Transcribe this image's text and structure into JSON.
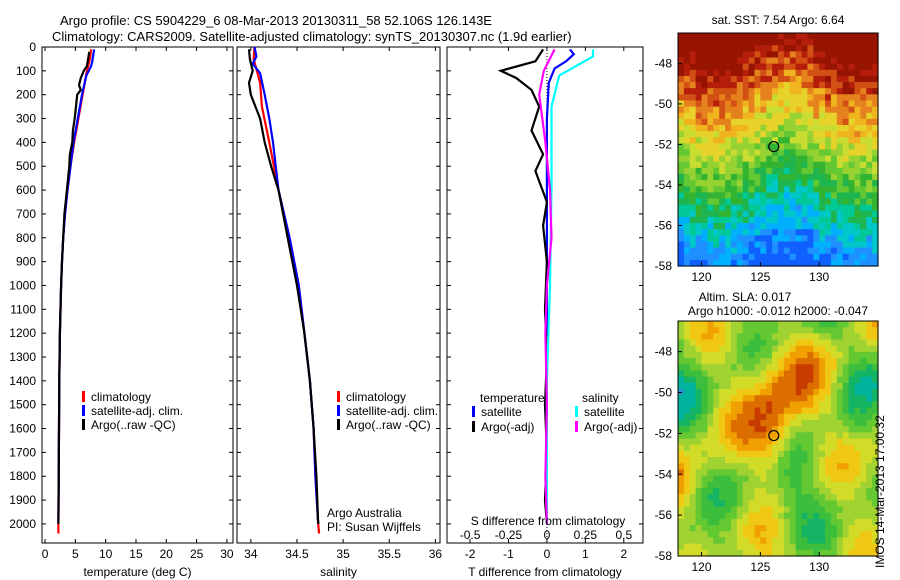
{
  "header": {
    "title_line1": "Argo profile: CS 5904229_6 08-Mar-2013 20130311_58 52.106S 126.143E",
    "title_line2": "Climatology: CARS2009. Satellite-adjusted climatology: synTS_20130307.nc (1.9d earlier)"
  },
  "colors": {
    "climatology": "#ff0000",
    "satellite": "#0000ff",
    "argo": "#000000",
    "satellite_salinity": "#00ffff",
    "argo_salinity_diff": "#ff00ff"
  },
  "chart_data": [
    {
      "type": "line",
      "panel": "temperature",
      "xlabel": "temperature (deg C)",
      "ylabel": "",
      "xlim": [
        -0.5,
        31
      ],
      "ylim": [
        2080,
        0
      ],
      "xticks": [
        "0",
        "5",
        "10",
        "15",
        "20",
        "25",
        "30"
      ],
      "xtick_values": [
        0,
        5,
        10,
        15,
        20,
        25,
        30
      ],
      "yticks": [
        0,
        100,
        200,
        300,
        400,
        500,
        600,
        700,
        800,
        900,
        1000,
        1100,
        1200,
        1300,
        1400,
        1500,
        1600,
        1700,
        1800,
        1900,
        2000
      ],
      "legend": [
        "climatology",
        "satellite-adj. clim.",
        "Argo(..raw -QC)"
      ],
      "series": [
        {
          "name": "climatology",
          "color": "#ff0000",
          "points": [
            [
              7.6,
              10
            ],
            [
              7.4,
              50
            ],
            [
              6.9,
              100
            ],
            [
              6.2,
              200
            ],
            [
              5.5,
              300
            ],
            [
              4.8,
              400
            ],
            [
              4.2,
              500
            ],
            [
              3.7,
              600
            ],
            [
              3.3,
              700
            ],
            [
              3.0,
              800
            ],
            [
              2.8,
              900
            ],
            [
              2.65,
              1000
            ],
            [
              2.55,
              1100
            ],
            [
              2.45,
              1200
            ],
            [
              2.35,
              1400
            ],
            [
              2.3,
              1600
            ],
            [
              2.25,
              1800
            ],
            [
              2.2,
              2000
            ],
            [
              2.2,
              2040
            ]
          ]
        },
        {
          "name": "satellite-adj. clim.",
          "color": "#0000ff",
          "points": [
            [
              8.1,
              10
            ],
            [
              7.8,
              60
            ],
            [
              7.6,
              80
            ],
            [
              6.8,
              120
            ],
            [
              6.1,
              200
            ],
            [
              5.4,
              300
            ],
            [
              4.7,
              400
            ],
            [
              4.2,
              500
            ],
            [
              3.7,
              600
            ],
            [
              3.3,
              700
            ],
            [
              3.0,
              800
            ],
            [
              2.8,
              900
            ],
            [
              2.65,
              1000
            ],
            [
              2.55,
              1100
            ],
            [
              2.45,
              1200
            ],
            [
              2.35,
              1400
            ],
            [
              2.3,
              1600
            ],
            [
              2.25,
              1800
            ],
            [
              2.2,
              2000
            ]
          ]
        },
        {
          "name": "Argo(..raw -QC)",
          "color": "#000000",
          "points": [
            [
              7.3,
              20
            ],
            [
              7.1,
              50
            ],
            [
              6.9,
              80
            ],
            [
              6.4,
              100
            ],
            [
              5.9,
              130
            ],
            [
              5.6,
              160
            ],
            [
              5.9,
              180
            ],
            [
              5.3,
              200
            ],
            [
              5.1,
              250
            ],
            [
              4.9,
              300
            ],
            [
              4.6,
              350
            ],
            [
              4.5,
              400
            ],
            [
              4.1,
              450
            ],
            [
              4.0,
              500
            ],
            [
              3.6,
              600
            ],
            [
              3.2,
              700
            ],
            [
              3.0,
              800
            ],
            [
              2.8,
              900
            ],
            [
              2.65,
              1000
            ],
            [
              2.55,
              1100
            ],
            [
              2.45,
              1200
            ],
            [
              2.35,
              1400
            ],
            [
              2.3,
              1600
            ],
            [
              2.25,
              1800
            ],
            [
              2.2,
              2000
            ]
          ]
        }
      ]
    },
    {
      "type": "line",
      "panel": "salinity",
      "xlabel": "salinity",
      "ylabel": "",
      "xlim": [
        33.85,
        36.05
      ],
      "ylim": [
        2080,
        0
      ],
      "xticks": [
        "34",
        "34.5",
        "35",
        "35.5",
        "36"
      ],
      "xtick_values": [
        34,
        34.5,
        35,
        35.5,
        36
      ],
      "legend": [
        "climatology",
        "satellite-adj. clim.",
        "Argo(..raw -QC)"
      ],
      "annotation": [
        "Argo Australia",
        "PI: Susan Wijffels"
      ],
      "series": [
        {
          "name": "climatology",
          "color": "#ff0000",
          "points": [
            [
              34.04,
              0
            ],
            [
              34.03,
              50
            ],
            [
              34.1,
              150
            ],
            [
              34.12,
              250
            ],
            [
              34.2,
              400
            ],
            [
              34.3,
              600
            ],
            [
              34.42,
              800
            ],
            [
              34.52,
              1000
            ],
            [
              34.58,
              1200
            ],
            [
              34.64,
              1400
            ],
            [
              34.68,
              1600
            ],
            [
              34.7,
              1800
            ],
            [
              34.73,
              2000
            ],
            [
              34.74,
              2040
            ]
          ]
        },
        {
          "name": "satellite-adj. clim.",
          "color": "#0000ff",
          "points": [
            [
              34.04,
              0
            ],
            [
              34.06,
              40
            ],
            [
              34.02,
              70
            ],
            [
              34.06,
              90
            ],
            [
              34.1,
              110
            ],
            [
              34.15,
              200
            ],
            [
              34.2,
              300
            ],
            [
              34.24,
              400
            ],
            [
              34.3,
              600
            ],
            [
              34.42,
              800
            ],
            [
              34.52,
              1000
            ],
            [
              34.58,
              1200
            ],
            [
              34.64,
              1400
            ],
            [
              34.68,
              1600
            ],
            [
              34.7,
              1800
            ],
            [
              34.73,
              2000
            ]
          ]
        },
        {
          "name": "Argo(..raw -QC)",
          "color": "#000000",
          "points": [
            [
              33.98,
              10
            ],
            [
              33.99,
              50
            ],
            [
              34.02,
              100
            ],
            [
              33.98,
              150
            ],
            [
              34.0,
              200
            ],
            [
              34.1,
              300
            ],
            [
              34.15,
              400
            ],
            [
              34.22,
              500
            ],
            [
              34.3,
              600
            ],
            [
              34.4,
              800
            ],
            [
              34.5,
              1000
            ],
            [
              34.58,
              1200
            ],
            [
              34.64,
              1400
            ],
            [
              34.68,
              1600
            ],
            [
              34.71,
              1800
            ],
            [
              34.73,
              2000
            ]
          ]
        }
      ]
    },
    {
      "type": "line",
      "panel": "difference",
      "xlabel": "T difference from climatology",
      "xlabel_top": "S difference from climatology",
      "ylabel": "",
      "xlim": [
        -2.6,
        2.5
      ],
      "ylim": [
        2080,
        0
      ],
      "xticks": [
        "-2",
        "-1",
        "0",
        "1",
        "2"
      ],
      "xtick_values": [
        -2,
        -1,
        0,
        1,
        2
      ],
      "sticks": [
        "-0.5",
        "-0.25",
        "0",
        "0.25",
        "0.5"
      ],
      "stick_values": [
        -0.5,
        -0.25,
        0,
        0.25,
        0.5
      ],
      "legend_left_title": "temperature",
      "legend_right_title": "salinity",
      "legend_left": [
        "satellite",
        "Argo(-adj)"
      ],
      "legend_right": [
        "satellite",
        "Argo(-adj)"
      ],
      "series": [
        {
          "name": "satellite",
          "quantity": "temperature",
          "color": "#0000ff",
          "points": [
            [
              0.6,
              10
            ],
            [
              0.7,
              30
            ],
            [
              0.5,
              60
            ],
            [
              0.2,
              90
            ],
            [
              0.05,
              150
            ],
            [
              0.0,
              300
            ],
            [
              0.0,
              600
            ],
            [
              0.0,
              1000
            ],
            [
              0.0,
              1400
            ],
            [
              0.0,
              2000
            ]
          ]
        },
        {
          "name": "Argo(-adj)",
          "quantity": "temperature",
          "color": "#000000",
          "points": [
            [
              -0.1,
              10
            ],
            [
              -0.3,
              60
            ],
            [
              -1.2,
              100
            ],
            [
              -0.8,
              130
            ],
            [
              -0.4,
              180
            ],
            [
              -0.2,
              250
            ],
            [
              -0.4,
              350
            ],
            [
              -0.1,
              450
            ],
            [
              -0.3,
              520
            ],
            [
              0.0,
              650
            ],
            [
              -0.1,
              750
            ],
            [
              0.0,
              900
            ],
            [
              -0.05,
              1100
            ],
            [
              0.0,
              1300
            ],
            [
              -0.05,
              1500
            ],
            [
              0.0,
              1700
            ],
            [
              -0.05,
              1900
            ],
            [
              0.0,
              2000
            ]
          ]
        },
        {
          "name": "satellite",
          "quantity": "salinity",
          "color": "#00ffff",
          "points": [
            [
              0.3,
              10
            ],
            [
              0.3,
              40
            ],
            [
              0.08,
              120
            ],
            [
              0.03,
              250
            ],
            [
              0.03,
              600
            ],
            [
              0.02,
              1000
            ],
            [
              0.0,
              1400
            ],
            [
              0.0,
              2000
            ]
          ]
        },
        {
          "name": "Argo(-adj)",
          "quantity": "salinity",
          "color": "#ff00ff",
          "points": [
            [
              0.05,
              10
            ],
            [
              -0.02,
              100
            ],
            [
              -0.05,
              200
            ],
            [
              -0.01,
              400
            ],
            [
              0.02,
              600
            ],
            [
              0.03,
              800
            ],
            [
              0.0,
              1000
            ],
            [
              -0.01,
              1200
            ],
            [
              0.0,
              1500
            ],
            [
              -0.01,
              1800
            ],
            [
              0.0,
              2000
            ]
          ]
        }
      ]
    },
    {
      "type": "heatmap",
      "panel": "sst-map",
      "title": "sat. SST: 7.54 Argo: 6.64",
      "xlim": [
        118,
        135
      ],
      "ylim": [
        -58,
        -46.5
      ],
      "xticks": [
        "120",
        "125",
        "130"
      ],
      "xtick_values": [
        120,
        125,
        130
      ],
      "yticks": [
        "-48",
        "-50",
        "-52",
        "-54",
        "-56",
        "-58"
      ],
      "ytick_values": [
        -48,
        -50,
        -52,
        -54,
        -56,
        -58
      ],
      "marker": {
        "lon": 126.143,
        "lat": -52.106
      }
    },
    {
      "type": "heatmap",
      "panel": "sla-map",
      "title": "Altim. SLA: 0.017",
      "subtitle": "Argo h1000: -0.012 h2000: -0.047",
      "xlim": [
        118,
        135
      ],
      "ylim": [
        -58,
        -46.5
      ],
      "xticks": [
        "120",
        "125",
        "130"
      ],
      "xtick_values": [
        120,
        125,
        130
      ],
      "yticks": [
        "-48",
        "-50",
        "-52",
        "-54",
        "-56",
        "-58"
      ],
      "ytick_values": [
        -48,
        -50,
        -52,
        -54,
        -56,
        -58
      ],
      "marker": {
        "lon": 126.143,
        "lat": -52.106
      }
    }
  ],
  "footer": {
    "stamp": "IMOS 14-Mar-2013 17:00:32"
  }
}
